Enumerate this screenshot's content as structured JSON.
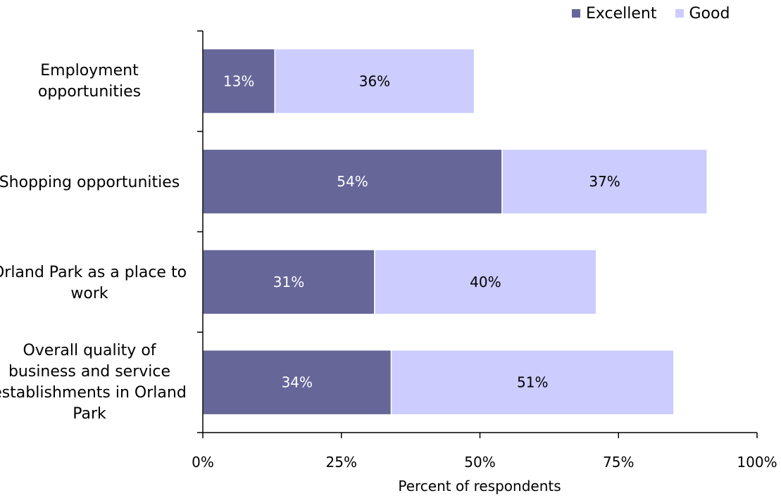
{
  "chart_data": {
    "type": "bar",
    "orientation": "horizontal",
    "stacked": true,
    "categories": [
      "Employment opportunities",
      "Shopping opportunities",
      "Orland Park as a place to work",
      "Overall quality of business and service establishments in Orland Park"
    ],
    "series": [
      {
        "name": "Excellent",
        "values": [
          13,
          54,
          31,
          34
        ],
        "labels": [
          "13%",
          "54%",
          "31%",
          "34%"
        ],
        "color": "#666699"
      },
      {
        "name": "Good",
        "values": [
          36,
          37,
          40,
          51
        ],
        "labels": [
          "36%",
          "37%",
          "40%",
          "51%"
        ],
        "color": "#ccccff"
      }
    ],
    "xlabel": "Percent of respondents",
    "xlim": [
      0,
      100
    ],
    "xticks": [
      0,
      25,
      50,
      75,
      100
    ],
    "xtick_labels": [
      "0%",
      "25%",
      "50%",
      "75%",
      "100%"
    ],
    "legend_position": "top-right",
    "grid": false
  }
}
